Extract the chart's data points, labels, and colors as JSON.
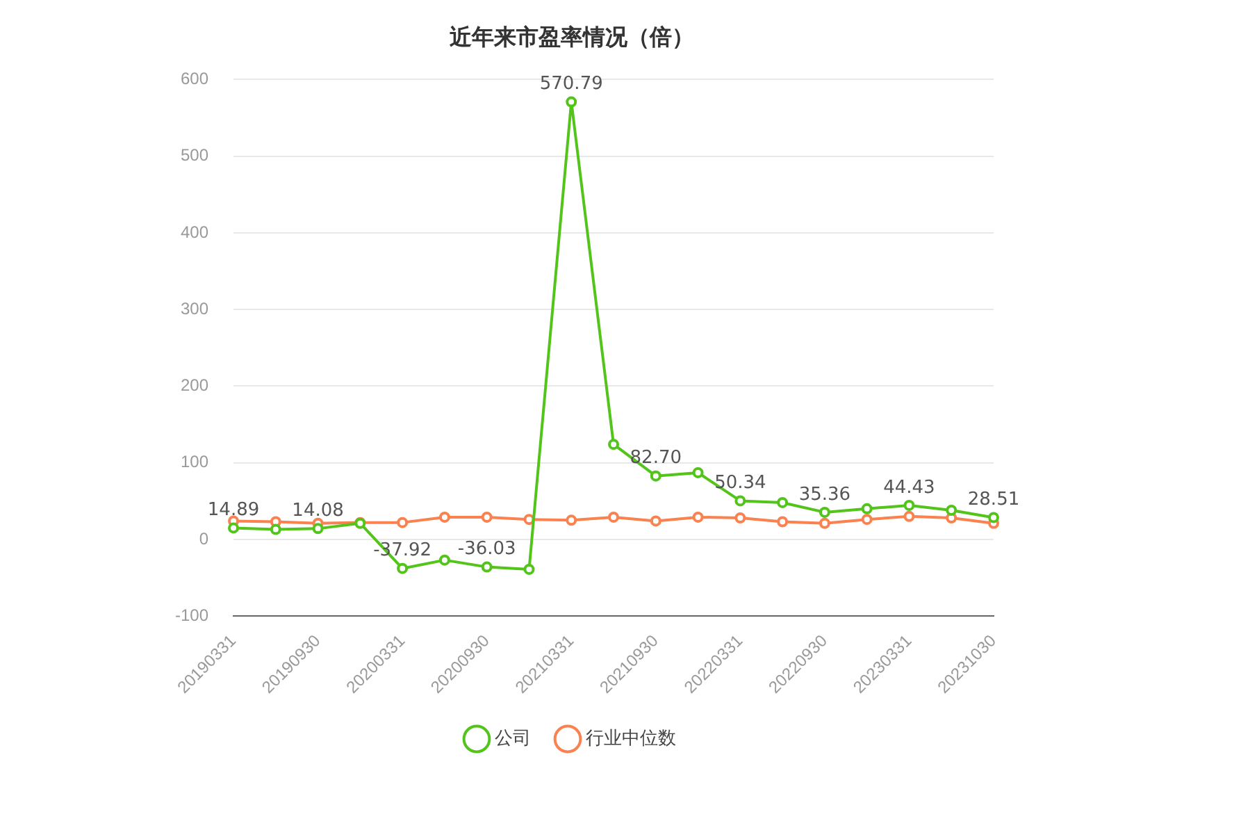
{
  "chart_data": {
    "type": "line",
    "title": "近年来市盈率情况（倍）",
    "categories": [
      "20190331",
      null,
      "20190930",
      null,
      "20200331",
      null,
      "20200930",
      null,
      "20210331",
      null,
      "20210930",
      null,
      "20220331",
      null,
      "20220930",
      null,
      "20230331",
      null,
      "20231030"
    ],
    "series": [
      {
        "name": "公司",
        "color": "#52c41a",
        "values": [
          14.89,
          13,
          14.08,
          21,
          -37.92,
          -27,
          -36.03,
          -39,
          570.79,
          124,
          82.7,
          87,
          50.34,
          48,
          35.36,
          40,
          44.43,
          38,
          28.51
        ],
        "value_labels": [
          "14.89",
          null,
          "14.08",
          null,
          "-37.92",
          null,
          "-36.03",
          null,
          "570.79",
          null,
          "82.70",
          null,
          "50.34",
          null,
          "35.36",
          null,
          "44.43",
          null,
          "28.51"
        ]
      },
      {
        "name": "行业中位数",
        "color": "#fa8150",
        "values": [
          24,
          23,
          21,
          22,
          22,
          29,
          29,
          26,
          25,
          29,
          24,
          29,
          28,
          23,
          21,
          26,
          30,
          28,
          21
        ]
      }
    ],
    "ylim": [
      -100,
      600
    ],
    "yticks": [
      -100,
      0,
      100,
      200,
      300,
      400,
      500,
      600
    ],
    "grid": "y",
    "legend": "bottom",
    "marker": "circle",
    "line_style": "solid"
  }
}
